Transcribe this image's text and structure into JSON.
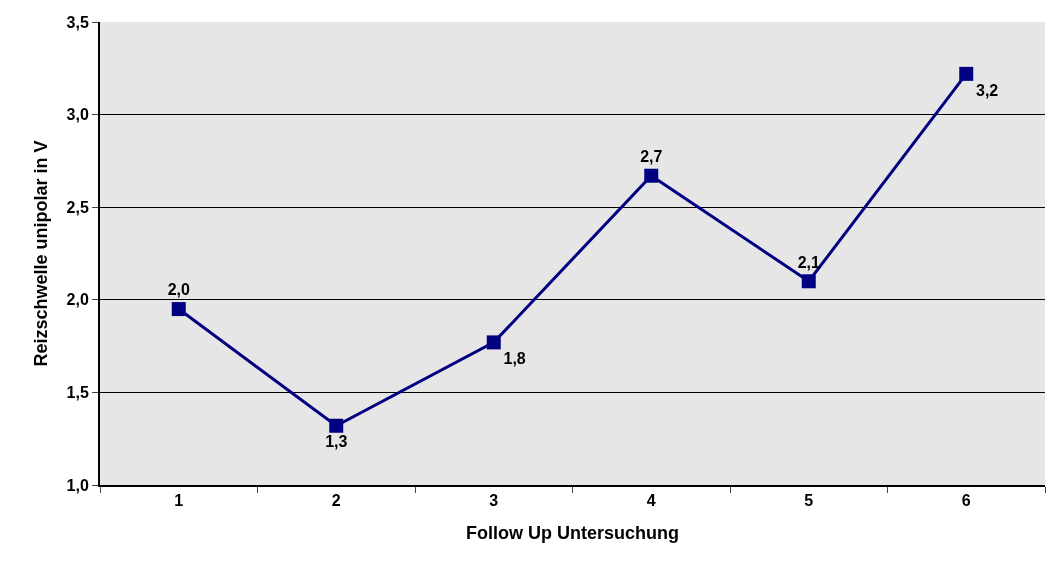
{
  "chart_data": {
    "type": "line",
    "xlabel": "Follow Up Untersuchung",
    "ylabel": "Reizschwelle unipolar in V",
    "categories": [
      "1",
      "2",
      "3",
      "4",
      "5",
      "6"
    ],
    "series": [
      {
        "color": "#000080",
        "values": [
          1.95,
          1.32,
          1.77,
          2.67,
          2.1,
          3.22
        ],
        "value_labels": [
          "2,0",
          "1,3",
          "1,8",
          "2,7",
          "2,1",
          "3,2"
        ]
      }
    ],
    "ylim": [
      1.0,
      3.5
    ],
    "yticks": [
      {
        "value": 1.0,
        "label": "1,0"
      },
      {
        "value": 1.5,
        "label": "1,5"
      },
      {
        "value": 2.0,
        "label": "2,0"
      },
      {
        "value": 2.5,
        "label": "2,5"
      },
      {
        "value": 3.0,
        "label": "3,0"
      },
      {
        "value": 3.5,
        "label": "3,5"
      }
    ],
    "grid": "y",
    "marker": "square",
    "line_style": "solid"
  }
}
